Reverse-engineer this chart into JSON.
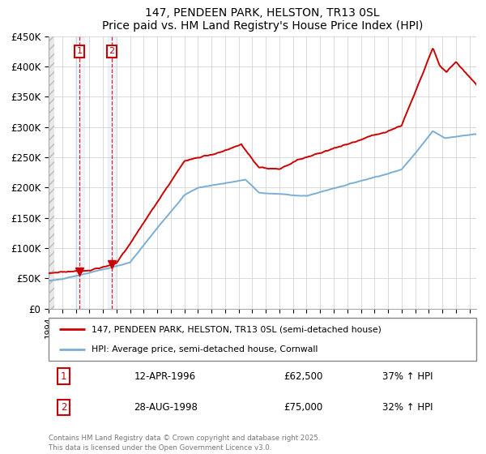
{
  "title": "147, PENDEEN PARK, HELSTON, TR13 0SL",
  "subtitle": "Price paid vs. HM Land Registry's House Price Index (HPI)",
  "legend_line1": "147, PENDEEN PARK, HELSTON, TR13 0SL (semi-detached house)",
  "legend_line2": "HPI: Average price, semi-detached house, Cornwall",
  "transaction1_date": "12-APR-1996",
  "transaction1_price": "£62,500",
  "transaction1_info": "37% ↑ HPI",
  "transaction2_date": "28-AUG-1998",
  "transaction2_price": "£75,000",
  "transaction2_info": "32% ↑ HPI",
  "footer": "Contains HM Land Registry data © Crown copyright and database right 2025.\nThis data is licensed under the Open Government Licence v3.0.",
  "red_color": "#cc0000",
  "blue_color": "#7aaed4",
  "box_color": "#cc0000",
  "vline_color": "#cc0000",
  "highlight_color": "#ddeeff",
  "ylim": [
    0,
    450000
  ],
  "yticks": [
    0,
    50000,
    100000,
    150000,
    200000,
    250000,
    300000,
    350000,
    400000,
    450000
  ],
  "start_year": 1994,
  "end_year": 2025,
  "transaction1_year": 1996.28,
  "transaction2_year": 1998.65,
  "transaction1_value": 62500,
  "transaction2_value": 75000,
  "figsize": [
    6.0,
    5.6
  ],
  "dpi": 100
}
